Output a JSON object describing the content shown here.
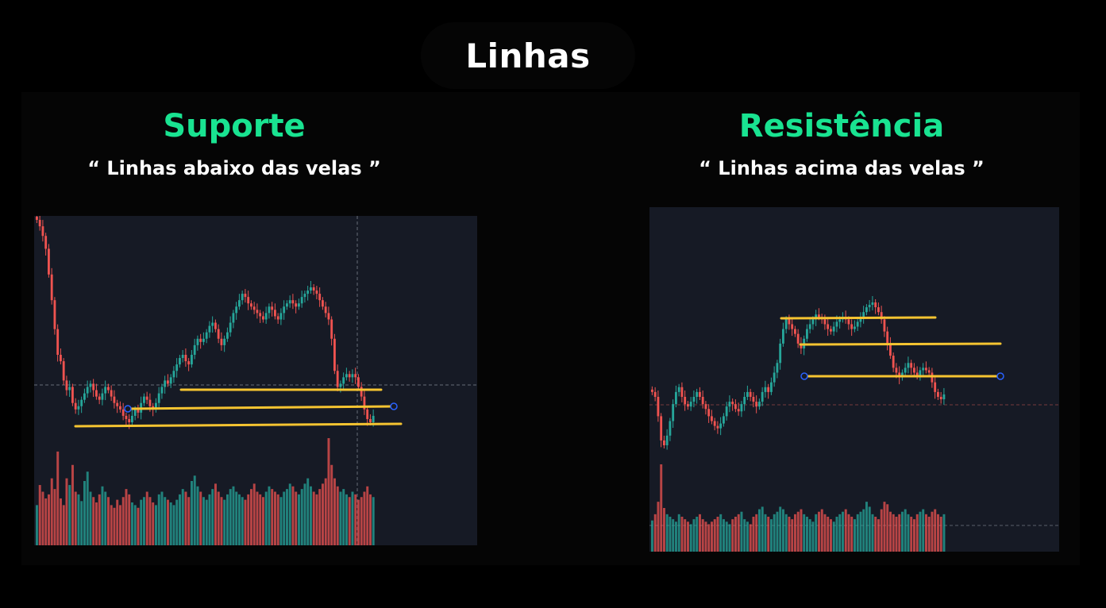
{
  "page": {
    "title": "Linhas"
  },
  "panels": [
    {
      "heading": "Suporte",
      "subheading": "“ Linhas abaixo das velas ”"
    },
    {
      "heading": "Resistência",
      "subheading": "“ Linhas acima das velas ”"
    }
  ],
  "colors": {
    "background": "#000000",
    "panel_background": "#161a25",
    "heading": "#19e391",
    "subheading": "#ffffff",
    "candle_up": "#26a69a",
    "candle_down": "#ef5350",
    "drawn_line": "#f5c431",
    "line_handle": "#2962ff"
  },
  "chart_data": [
    {
      "type": "candlestick",
      "panel": "Suporte",
      "closes": [
        97,
        95,
        92,
        88,
        80,
        72,
        63,
        55,
        53,
        47,
        44,
        45,
        40,
        38,
        39,
        41,
        43,
        45,
        46,
        44,
        42,
        41,
        43,
        45,
        44,
        42,
        40,
        39,
        38,
        36,
        35,
        34,
        36,
        38,
        37,
        40,
        42,
        41,
        39,
        38,
        40,
        43,
        45,
        47,
        46,
        48,
        50,
        52,
        54,
        55,
        53,
        52,
        55,
        58,
        60,
        59,
        60,
        62,
        64,
        65,
        63,
        60,
        58,
        60,
        62,
        65,
        68,
        70,
        72,
        74,
        73,
        71,
        70,
        69,
        68,
        67,
        66,
        68,
        70,
        69,
        67,
        66,
        68,
        70,
        71,
        72,
        71,
        70,
        71,
        73,
        74,
        75,
        76,
        75,
        74,
        72,
        70,
        68,
        66,
        60,
        50,
        45,
        46,
        48,
        49,
        48,
        49,
        48,
        45,
        42,
        38,
        35,
        34,
        36
      ],
      "volumes": [
        30,
        45,
        40,
        35,
        38,
        50,
        42,
        70,
        35,
        30,
        50,
        45,
        60,
        40,
        38,
        33,
        48,
        55,
        40,
        36,
        32,
        38,
        44,
        40,
        36,
        30,
        28,
        34,
        30,
        36,
        42,
        38,
        32,
        30,
        28,
        34,
        36,
        40,
        36,
        32,
        30,
        38,
        40,
        36,
        34,
        32,
        30,
        34,
        38,
        42,
        40,
        36,
        48,
        52,
        44,
        40,
        36,
        34,
        38,
        42,
        46,
        40,
        36,
        34,
        38,
        42,
        44,
        40,
        38,
        36,
        34,
        38,
        42,
        46,
        40,
        38,
        36,
        40,
        44,
        42,
        40,
        38,
        36,
        40,
        42,
        46,
        44,
        40,
        38,
        42,
        46,
        50,
        44,
        40,
        38,
        42,
        46,
        50,
        80,
        60,
        50,
        44,
        40,
        42,
        38,
        36,
        40,
        38,
        34,
        36,
        40,
        44,
        38,
        36
      ],
      "support_lines": 3
    },
    {
      "type": "candlestick",
      "panel": "Resistência",
      "closes": [
        40,
        38,
        30,
        20,
        18,
        22,
        28,
        35,
        40,
        42,
        38,
        35,
        34,
        36,
        38,
        40,
        38,
        35,
        33,
        30,
        28,
        26,
        25,
        27,
        30,
        34,
        36,
        35,
        33,
        32,
        35,
        38,
        40,
        38,
        36,
        34,
        36,
        40,
        42,
        40,
        44,
        48,
        52,
        60,
        66,
        70,
        68,
        66,
        64,
        60,
        58,
        62,
        66,
        68,
        70,
        72,
        71,
        70,
        68,
        66,
        65,
        67,
        69,
        70,
        71,
        70,
        68,
        66,
        67,
        69,
        71,
        73,
        75,
        76,
        77,
        75,
        73,
        70,
        65,
        60,
        55,
        50,
        48,
        46,
        48,
        50,
        52,
        50,
        48,
        47,
        49,
        50,
        49,
        48,
        44,
        40,
        38,
        37,
        39
      ],
      "volumes": [
        25,
        30,
        40,
        70,
        35,
        30,
        28,
        26,
        24,
        30,
        28,
        26,
        24,
        22,
        26,
        28,
        30,
        26,
        24,
        22,
        24,
        26,
        28,
        30,
        26,
        24,
        22,
        26,
        28,
        30,
        32,
        26,
        24,
        22,
        28,
        30,
        34,
        36,
        30,
        28,
        26,
        30,
        32,
        36,
        34,
        30,
        28,
        26,
        30,
        32,
        34,
        30,
        28,
        26,
        24,
        30,
        32,
        34,
        30,
        28,
        26,
        24,
        28,
        30,
        32,
        34,
        30,
        28,
        26,
        30,
        32,
        34,
        40,
        36,
        30,
        28,
        26,
        34,
        40,
        38,
        32,
        30,
        28,
        30,
        32,
        34,
        30,
        28,
        26,
        30,
        32,
        34,
        30,
        28,
        32,
        34,
        30,
        28,
        30
      ],
      "resistance_lines": 3
    }
  ]
}
